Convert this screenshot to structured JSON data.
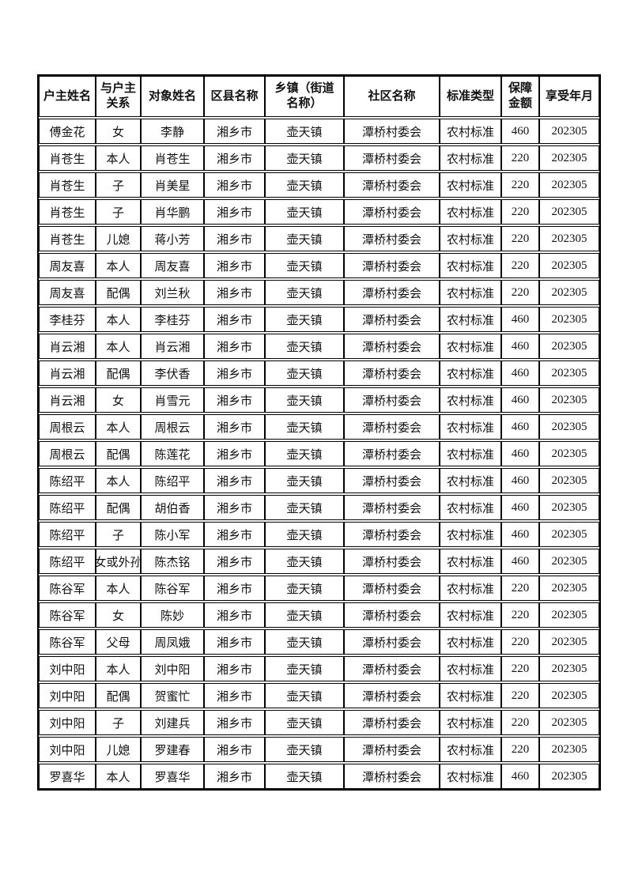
{
  "colors": {
    "background": "#ffffff",
    "border": "#000000",
    "text": "#111111"
  },
  "table": {
    "columns": [
      "户主姓名",
      "与户主\n关系",
      "对象姓名",
      "区县名称",
      "乡镇（街道\n名称）",
      "社区名称",
      "标准类型",
      "保障\n金额",
      "享受年月"
    ],
    "rows": [
      [
        "傅金花",
        "女",
        "李静",
        "湘乡市",
        "壶天镇",
        "潭桥村委会",
        "农村标准",
        "460",
        "202305"
      ],
      [
        "肖苍生",
        "本人",
        "肖苍生",
        "湘乡市",
        "壶天镇",
        "潭桥村委会",
        "农村标准",
        "220",
        "202305"
      ],
      [
        "肖苍生",
        "子",
        "肖美星",
        "湘乡市",
        "壶天镇",
        "潭桥村委会",
        "农村标准",
        "220",
        "202305"
      ],
      [
        "肖苍生",
        "子",
        "肖华鹏",
        "湘乡市",
        "壶天镇",
        "潭桥村委会",
        "农村标准",
        "220",
        "202305"
      ],
      [
        "肖苍生",
        "儿媳",
        "蒋小芳",
        "湘乡市",
        "壶天镇",
        "潭桥村委会",
        "农村标准",
        "220",
        "202305"
      ],
      [
        "周友喜",
        "本人",
        "周友喜",
        "湘乡市",
        "壶天镇",
        "潭桥村委会",
        "农村标准",
        "220",
        "202305"
      ],
      [
        "周友喜",
        "配偶",
        "刘兰秋",
        "湘乡市",
        "壶天镇",
        "潭桥村委会",
        "农村标准",
        "220",
        "202305"
      ],
      [
        "李桂芬",
        "本人",
        "李桂芬",
        "湘乡市",
        "壶天镇",
        "潭桥村委会",
        "农村标准",
        "460",
        "202305"
      ],
      [
        "肖云湘",
        "本人",
        "肖云湘",
        "湘乡市",
        "壶天镇",
        "潭桥村委会",
        "农村标准",
        "460",
        "202305"
      ],
      [
        "肖云湘",
        "配偶",
        "李伏香",
        "湘乡市",
        "壶天镇",
        "潭桥村委会",
        "农村标准",
        "460",
        "202305"
      ],
      [
        "肖云湘",
        "女",
        "肖雪元",
        "湘乡市",
        "壶天镇",
        "潭桥村委会",
        "农村标准",
        "460",
        "202305"
      ],
      [
        "周根云",
        "本人",
        "周根云",
        "湘乡市",
        "壶天镇",
        "潭桥村委会",
        "农村标准",
        "460",
        "202305"
      ],
      [
        "周根云",
        "配偶",
        "陈莲花",
        "湘乡市",
        "壶天镇",
        "潭桥村委会",
        "农村标准",
        "460",
        "202305"
      ],
      [
        "陈绍平",
        "本人",
        "陈绍平",
        "湘乡市",
        "壶天镇",
        "潭桥村委会",
        "农村标准",
        "460",
        "202305"
      ],
      [
        "陈绍平",
        "配偶",
        "胡伯香",
        "湘乡市",
        "壶天镇",
        "潭桥村委会",
        "农村标准",
        "460",
        "202305"
      ],
      [
        "陈绍平",
        "子",
        "陈小军",
        "湘乡市",
        "壶天镇",
        "潭桥村委会",
        "农村标准",
        "460",
        "202305"
      ],
      [
        "陈绍平",
        "孙女或外孙女",
        "陈杰铭",
        "湘乡市",
        "壶天镇",
        "潭桥村委会",
        "农村标准",
        "460",
        "202305"
      ],
      [
        "陈谷军",
        "本人",
        "陈谷军",
        "湘乡市",
        "壶天镇",
        "潭桥村委会",
        "农村标准",
        "220",
        "202305"
      ],
      [
        "陈谷军",
        "女",
        "陈妙",
        "湘乡市",
        "壶天镇",
        "潭桥村委会",
        "农村标准",
        "220",
        "202305"
      ],
      [
        "陈谷军",
        "父母",
        "周凤娥",
        "湘乡市",
        "壶天镇",
        "潭桥村委会",
        "农村标准",
        "220",
        "202305"
      ],
      [
        "刘中阳",
        "本人",
        "刘中阳",
        "湘乡市",
        "壶天镇",
        "潭桥村委会",
        "农村标准",
        "220",
        "202305"
      ],
      [
        "刘中阳",
        "配偶",
        "贺蜜忙",
        "湘乡市",
        "壶天镇",
        "潭桥村委会",
        "农村标准",
        "220",
        "202305"
      ],
      [
        "刘中阳",
        "子",
        "刘建兵",
        "湘乡市",
        "壶天镇",
        "潭桥村委会",
        "农村标准",
        "220",
        "202305"
      ],
      [
        "刘中阳",
        "儿媳",
        "罗建春",
        "湘乡市",
        "壶天镇",
        "潭桥村委会",
        "农村标准",
        "220",
        "202305"
      ],
      [
        "罗喜华",
        "本人",
        "罗喜华",
        "湘乡市",
        "壶天镇",
        "潭桥村委会",
        "农村标准",
        "460",
        "202305"
      ]
    ]
  }
}
